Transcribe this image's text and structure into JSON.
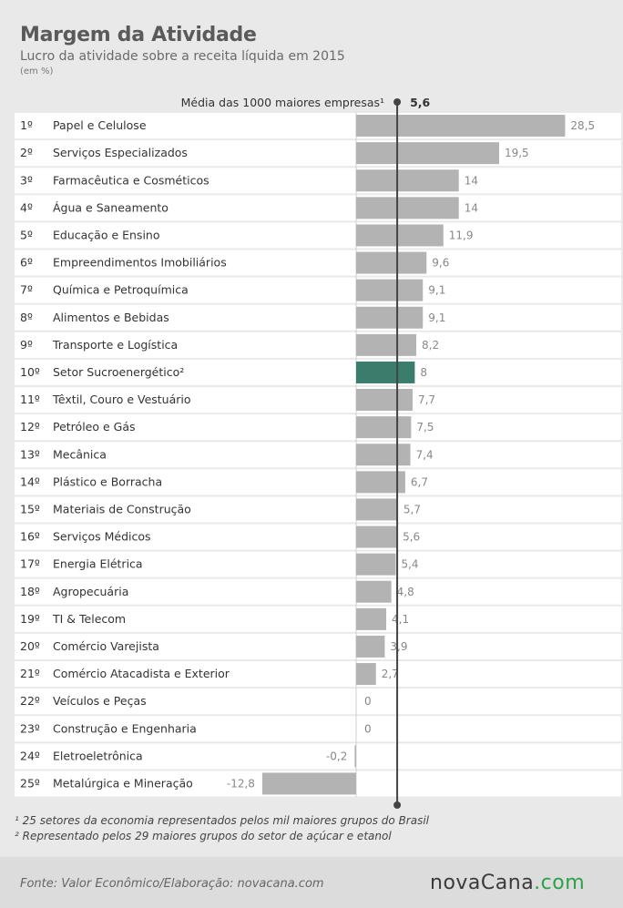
{
  "header": {
    "title": "Margem da Atividade",
    "subtitle": "Lucro da atividade sobre a receita líquida em 2015",
    "units": "(em %)"
  },
  "chart_data": {
    "type": "bar",
    "orientation": "horizontal",
    "reference_line": {
      "label": "Média das 1000 maiores empresas¹",
      "value": 5.6,
      "value_label": "5,6"
    },
    "categories": [
      "Papel e Celulose",
      "Serviços Especializados",
      "Farmacêutica e Cosméticos",
      "Água e Saneamento",
      "Educação e Ensino",
      "Empreendimentos Imobiliários",
      "Química e Petroquímica",
      "Alimentos e Bebidas",
      "Transporte e Logística",
      "Setor Sucroenergético²",
      "Têxtil, Couro e Vestuário",
      "Petróleo e Gás",
      "Mecânica",
      "Plástico e Borracha",
      "Materiais de Construção",
      "Serviços Médicos",
      "Energia Elétrica",
      "Agropecuária",
      "TI & Telecom",
      "Comércio Varejista",
      "Comércio Atacadista e Exterior",
      "Veículos e Peças",
      "Construção e Engenharia",
      "Eletroeletrônica",
      "Metalúrgica e Mineração"
    ],
    "ranks": [
      "1º",
      "2º",
      "3º",
      "4º",
      "5º",
      "6º",
      "7º",
      "8º",
      "9º",
      "10º",
      "11º",
      "12º",
      "13º",
      "14º",
      "15º",
      "16º",
      "17º",
      "18º",
      "19º",
      "20º",
      "21º",
      "22º",
      "23º",
      "24º",
      "25º"
    ],
    "values": [
      28.5,
      19.5,
      14,
      14,
      11.9,
      9.6,
      9.1,
      9.1,
      8.2,
      8,
      7.7,
      7.5,
      7.4,
      6.7,
      5.7,
      5.6,
      5.4,
      4.8,
      4.1,
      3.9,
      2.7,
      0,
      0,
      -0.2,
      -12.8
    ],
    "value_labels": [
      "28,5",
      "19,5",
      "14",
      "14",
      "11,9",
      "9,6",
      "9,1",
      "9,1",
      "8,2",
      "8",
      "7,7",
      "7,5",
      "7,4",
      "6,7",
      "5,7",
      "5,6",
      "5,4",
      "4,8",
      "4,1",
      "3,9",
      "2,7",
      "0",
      "0",
      "-0,2",
      "-12,8"
    ],
    "highlight_index": 9,
    "colors": {
      "bar": "#b3b3b3",
      "highlight": "#3a7d6c",
      "reference": "#444444"
    },
    "xlim": [
      -12.8,
      28.5
    ]
  },
  "footnotes": [
    "¹ 25 setores da economia representados pelos mil maiores grupos do Brasil",
    "² Representado pelos 29 maiores grupos do setor de açúcar e etanol"
  ],
  "footer": {
    "source": "Fonte:  Valor  Econômico/Elaboração: novacana.com",
    "logo_main": "novaCana",
    "logo_dot": ".",
    "logo_tld": "com"
  }
}
